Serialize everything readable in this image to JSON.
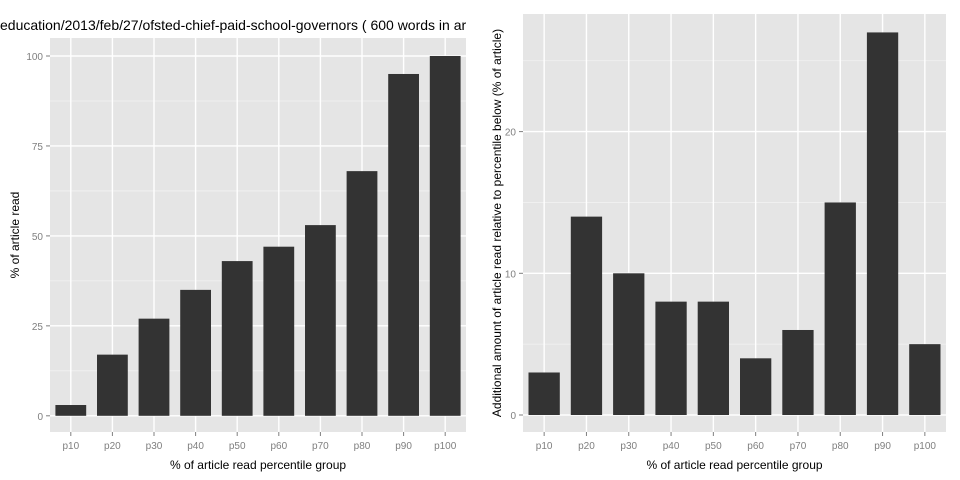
{
  "figure": {
    "title": "education/2013/feb/27/ofsted-chief-paid-school-governors ( 600 words in ar"
  },
  "chart_data": [
    {
      "type": "bar",
      "title": "education/2013/feb/27/ofsted-chief-paid-school-governors ( 600 words in ar",
      "xlabel": "% of article read percentile group",
      "ylabel": "% of article read",
      "categories": [
        "p10",
        "p20",
        "p30",
        "p40",
        "p50",
        "p60",
        "p70",
        "p80",
        "p90",
        "p100"
      ],
      "values": [
        3,
        17,
        27,
        35,
        43,
        47,
        53,
        68,
        95,
        100
      ],
      "ylim": [
        -4.5,
        105
      ],
      "yticks": [
        0,
        25,
        50,
        75,
        100
      ],
      "ytick_labels": [
        "0",
        "25",
        "50",
        "75",
        "100"
      ],
      "grid": true,
      "colors": {
        "panel": "#e5e5e5",
        "grid": "#ffffff",
        "bar": "#333333",
        "tick_text": "#7f7f7f"
      }
    },
    {
      "type": "bar",
      "title": "",
      "xlabel": "% of article read percentile group",
      "ylabel": "Additional amount of article read relative to percentile below (% of article)",
      "categories": [
        "p10",
        "p20",
        "p30",
        "p40",
        "p50",
        "p60",
        "p70",
        "p80",
        "p90",
        "p100"
      ],
      "values": [
        3,
        14,
        10,
        8,
        8,
        4,
        6,
        15,
        27,
        5
      ],
      "ylim": [
        -1.2,
        28.3
      ],
      "yticks": [
        0,
        10,
        20
      ],
      "ytick_labels": [
        "0",
        "10",
        "20"
      ],
      "grid": true,
      "colors": {
        "panel": "#e5e5e5",
        "grid": "#ffffff",
        "bar": "#333333",
        "tick_text": "#7f7f7f"
      }
    }
  ]
}
